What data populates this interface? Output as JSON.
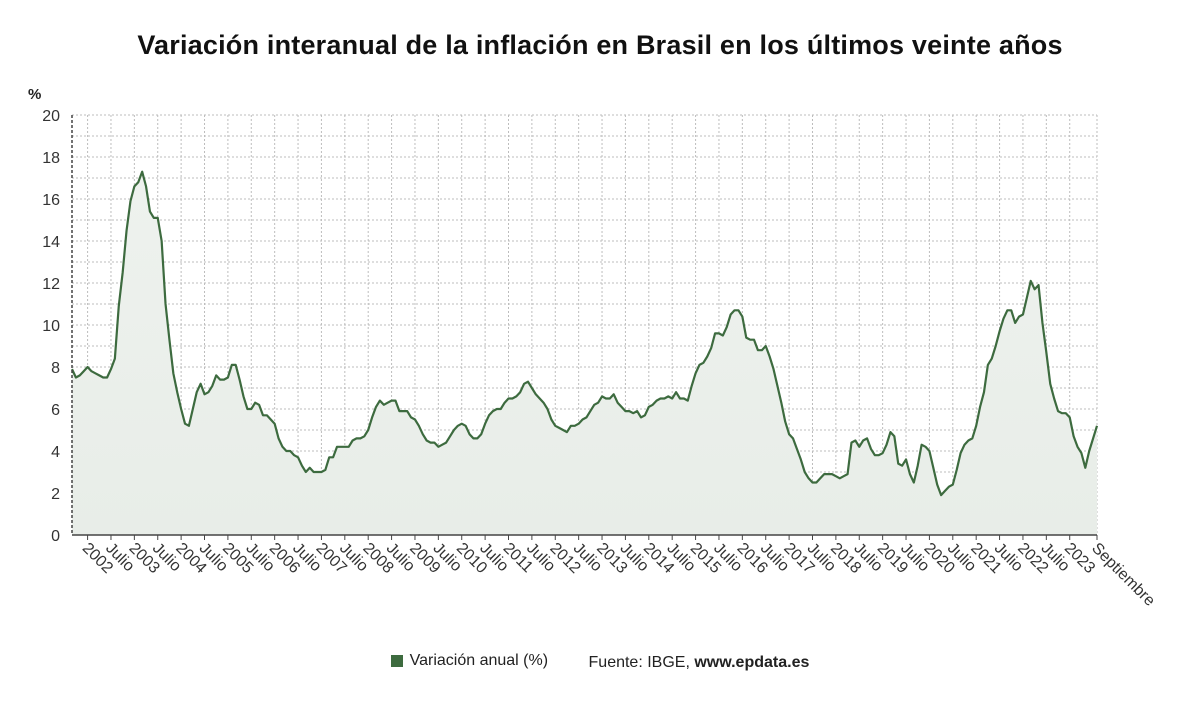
{
  "title": "Variación interanual de la inflación en Brasil en los últimos veinte años",
  "unit_label": "%",
  "legend": {
    "series_label": "Variación anual (%)",
    "source_prefix": "Fuente: IBGE,",
    "source_site": "www.epdata.es"
  },
  "colors": {
    "line": "#3d6b3f",
    "fill": "#eef2ee",
    "grid": "#bdbdbd",
    "axis": "#444444",
    "swatch": "#3d6b3f"
  },
  "chart_data": {
    "type": "area",
    "title": "Variación interanual de la inflación en Brasil en los últimos veinte años",
    "ylabel": "%",
    "ylim": [
      0,
      20
    ],
    "yticks": [
      0,
      2,
      4,
      6,
      8,
      10,
      12,
      14,
      16,
      18,
      20
    ],
    "grid": true,
    "legend_position": "bottom",
    "start": "2002-09",
    "end": "2023-09",
    "x_tick_labels": [
      "2002",
      "Julio",
      "2003",
      "Julio",
      "2004",
      "Julio",
      "2005",
      "Julio",
      "2006",
      "Julio",
      "2007",
      "Julio",
      "2008",
      "Julio",
      "2009",
      "Julio",
      "2010",
      "Julio",
      "2011",
      "Julio",
      "2012",
      "Julio",
      "2013",
      "Julio",
      "2014",
      "Julio",
      "2015",
      "Julio",
      "2016",
      "Julio",
      "2017",
      "Julio",
      "2018",
      "Julio",
      "2019",
      "Julio",
      "2020",
      "Julio",
      "2021",
      "Julio",
      "2022",
      "Julio",
      "2023",
      "Septiembre"
    ],
    "series": [
      {
        "name": "Variación anual (%)",
        "values": [
          7.9,
          7.5,
          7.6,
          7.8,
          8.0,
          7.8,
          7.7,
          7.6,
          7.5,
          7.5,
          7.9,
          8.4,
          10.9,
          12.5,
          14.5,
          15.9,
          16.6,
          16.8,
          17.3,
          16.6,
          15.4,
          15.1,
          15.1,
          14.0,
          11.0,
          9.3,
          7.7,
          6.8,
          6.0,
          5.3,
          5.2,
          6.0,
          6.8,
          7.2,
          6.7,
          6.8,
          7.1,
          7.6,
          7.4,
          7.4,
          7.5,
          8.1,
          8.1,
          7.4,
          6.6,
          6.0,
          6.0,
          6.3,
          6.2,
          5.7,
          5.7,
          5.5,
          5.3,
          4.6,
          4.2,
          4.0,
          4.0,
          3.8,
          3.7,
          3.3,
          3.0,
          3.2,
          3.0,
          3.0,
          3.0,
          3.1,
          3.7,
          3.7,
          4.2,
          4.2,
          4.2,
          4.2,
          4.5,
          4.6,
          4.6,
          4.7,
          5.0,
          5.6,
          6.1,
          6.4,
          6.2,
          6.3,
          6.4,
          6.4,
          5.9,
          5.9,
          5.9,
          5.6,
          5.5,
          5.2,
          4.8,
          4.5,
          4.4,
          4.4,
          4.2,
          4.3,
          4.4,
          4.7,
          5.0,
          5.2,
          5.3,
          5.2,
          4.8,
          4.6,
          4.6,
          4.8,
          5.3,
          5.7,
          5.9,
          6.0,
          6.0,
          6.3,
          6.5,
          6.5,
          6.6,
          6.8,
          7.2,
          7.3,
          7.0,
          6.7,
          6.5,
          6.3,
          6.0,
          5.5,
          5.2,
          5.1,
          5.0,
          4.9,
          5.2,
          5.2,
          5.3,
          5.5,
          5.6,
          5.9,
          6.2,
          6.3,
          6.6,
          6.5,
          6.5,
          6.7,
          6.3,
          6.1,
          5.9,
          5.9,
          5.8,
          5.9,
          5.6,
          5.7,
          6.1,
          6.2,
          6.4,
          6.5,
          6.5,
          6.6,
          6.5,
          6.8,
          6.5,
          6.5,
          6.4,
          7.1,
          7.7,
          8.1,
          8.2,
          8.5,
          8.9,
          9.6,
          9.6,
          9.5,
          9.9,
          10.5,
          10.7,
          10.7,
          10.4,
          9.4,
          9.3,
          9.3,
          8.8,
          8.8,
          9.0,
          8.5,
          7.9,
          7.1,
          6.3,
          5.4,
          4.8,
          4.6,
          4.1,
          3.6,
          3.0,
          2.7,
          2.5,
          2.5,
          2.7,
          2.9,
          2.9,
          2.9,
          2.8,
          2.7,
          2.8,
          2.9,
          4.4,
          4.5,
          4.2,
          4.5,
          4.6,
          4.1,
          3.8,
          3.8,
          3.9,
          4.3,
          4.9,
          4.7,
          3.4,
          3.3,
          3.6,
          2.9,
          2.5,
          3.3,
          4.3,
          4.2,
          4.0,
          3.2,
          2.4,
          1.9,
          2.1,
          2.3,
          2.4,
          3.1,
          3.9,
          4.3,
          4.5,
          4.6,
          5.2,
          6.1,
          6.8,
          8.1,
          8.4,
          9.0,
          9.7,
          10.3,
          10.7,
          10.7,
          10.1,
          10.4,
          10.5,
          11.3,
          12.1,
          11.7,
          11.9,
          10.1,
          8.7,
          7.2,
          6.5,
          5.9,
          5.8,
          5.8,
          5.6,
          4.7,
          4.2,
          3.9,
          3.2,
          4.0,
          4.6,
          5.2
        ]
      }
    ]
  }
}
